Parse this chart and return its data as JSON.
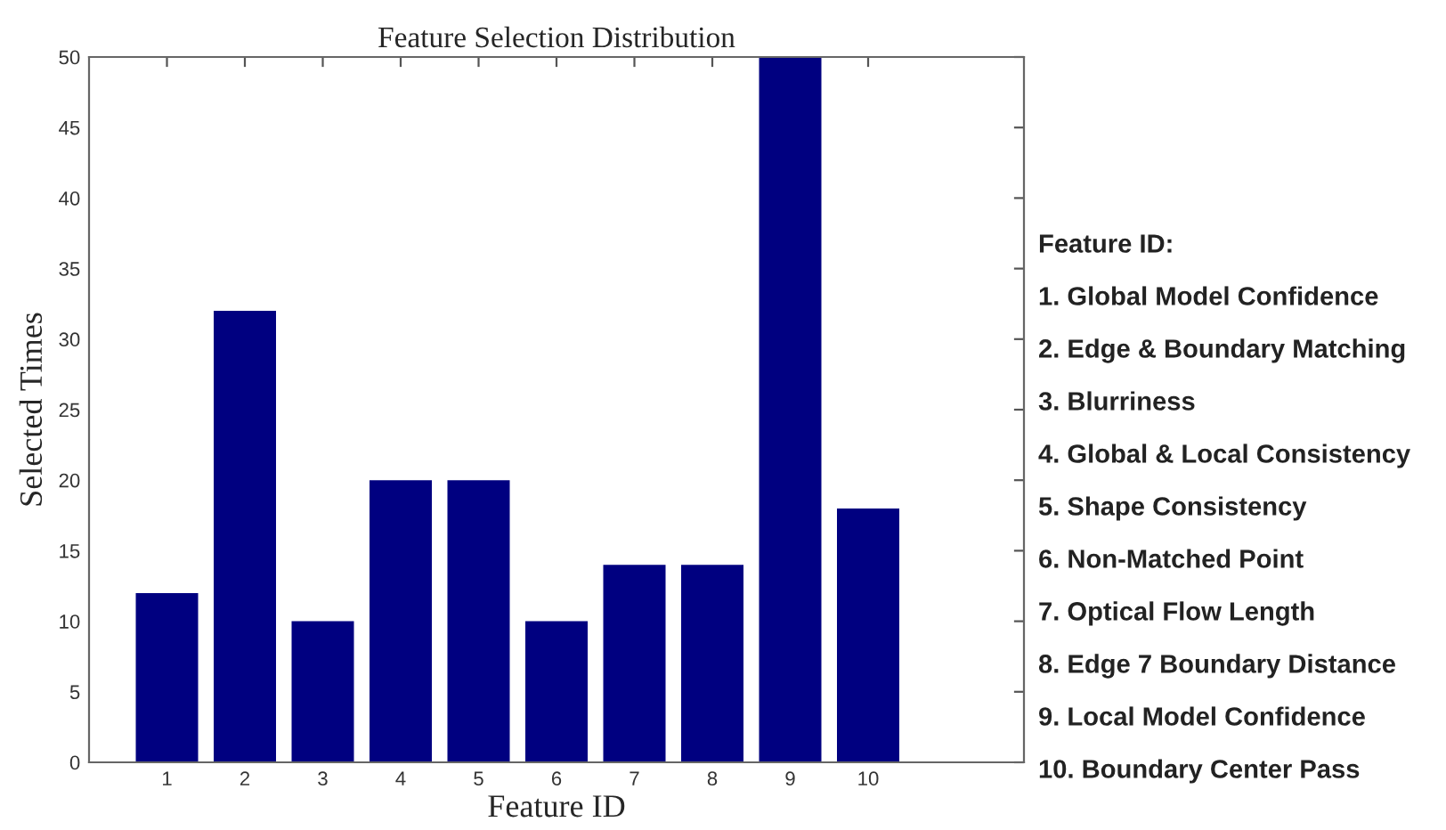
{
  "chart_data": {
    "type": "bar",
    "title": "Feature Selection Distribution",
    "xlabel": "Feature ID",
    "ylabel": "Selected Times",
    "x": [
      1,
      2,
      3,
      4,
      5,
      6,
      7,
      8,
      9,
      10
    ],
    "values": [
      12,
      32,
      10,
      20,
      20,
      10,
      14,
      14,
      50,
      18
    ],
    "color": "#000080",
    "xlim": [
      0,
      12
    ],
    "xticks": [
      1,
      2,
      3,
      4,
      5,
      6,
      7,
      8,
      9,
      10
    ],
    "ylim": [
      0,
      50
    ],
    "yticks": [
      0,
      5,
      10,
      15,
      20,
      25,
      30,
      35,
      40,
      45,
      50
    ],
    "grid": false,
    "legend": false,
    "annotations": [
      "Feature ID:",
      "1. Global Model Confidence",
      "2. Edge & Boundary Matching",
      "3. Blurriness",
      "4. Global & Local Consistency",
      "5. Shape Consistency",
      "6. Non-Matched Point",
      "7. Optical Flow Length",
      "8. Edge 7 Boundary Distance",
      "9. Local Model Confidence",
      "10. Boundary Center Pass"
    ]
  }
}
